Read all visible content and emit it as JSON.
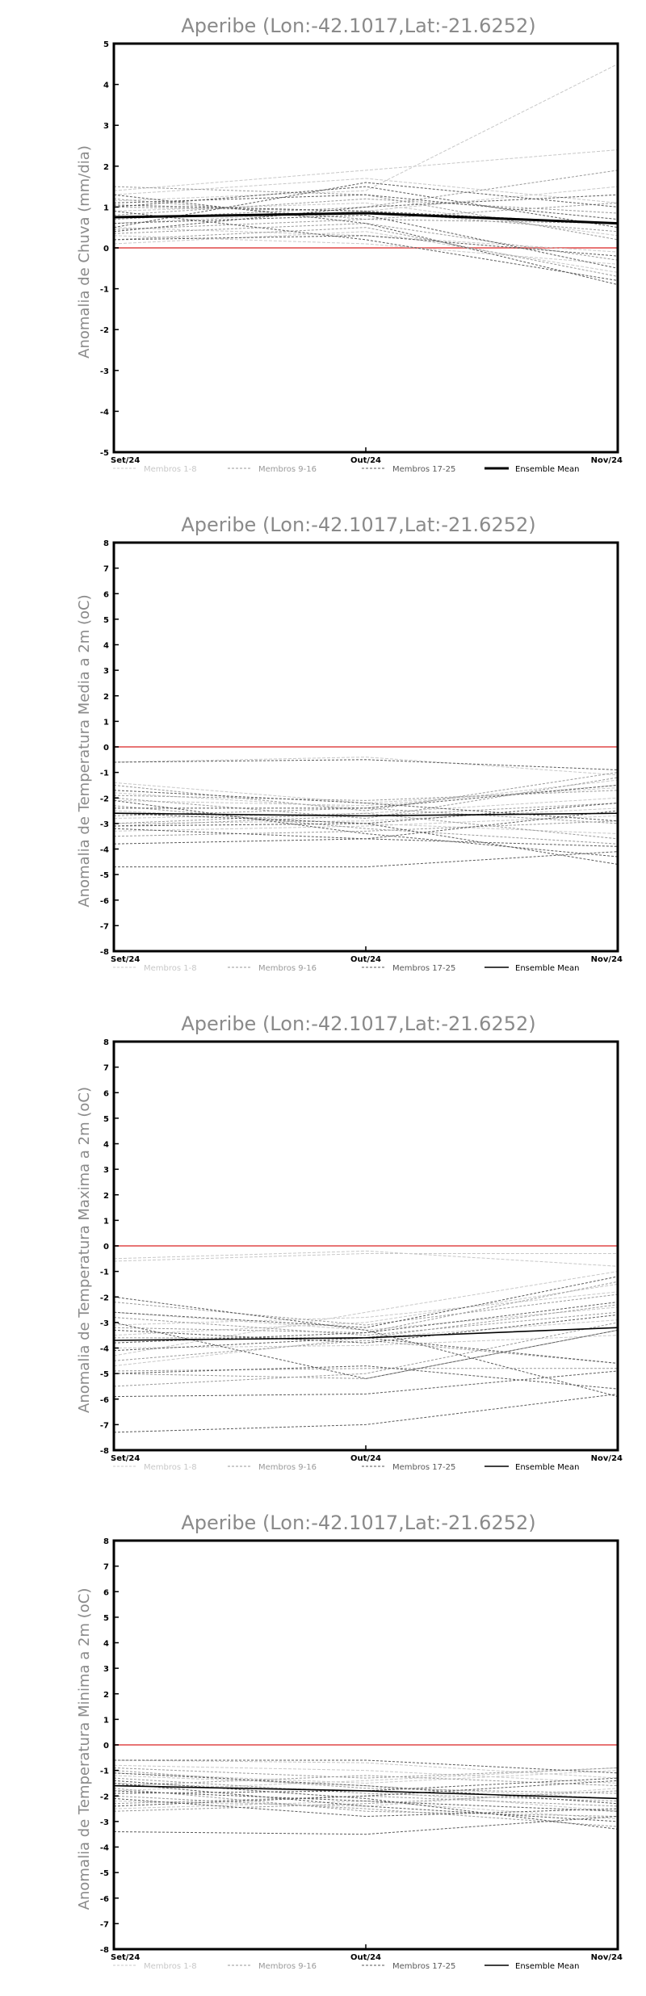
{
  "chart_data": [
    {
      "type": "line",
      "title": "Aperibe (Lon:-42.1017,Lat:-21.6252)",
      "ylabel": "Anomalia de Chuva (mm/dia)",
      "xlabel": "",
      "categories": [
        "Set/24",
        "Out/24",
        "Nov/24"
      ],
      "ylim": [
        -5,
        5
      ],
      "yticks": [
        -5,
        -4,
        -3,
        -2,
        -1,
        0,
        1,
        2,
        3,
        4,
        5
      ],
      "zero_line_color": "#e87575",
      "legend": [
        "Membros 1-8",
        "Membros 9-16",
        "Membros 17-25",
        "Ensemble Mean"
      ],
      "ensemble_mean_bold": true,
      "series": [
        {
          "name": "Membros 1-8",
          "values": [
            [
              1.15,
              1.4,
              4.5
            ],
            [
              0.6,
              0.9,
              1.5
            ],
            [
              0.3,
              0.1,
              -0.4
            ],
            [
              1.3,
              1.7,
              1.1
            ],
            [
              0.9,
              1.1,
              0.3
            ],
            [
              0.1,
              0.4,
              -0.6
            ],
            [
              1.4,
              1.9,
              2.4
            ],
            [
              0.5,
              0.3,
              -0.1
            ]
          ]
        },
        {
          "name": "Membros 9-16",
          "values": [
            [
              1.2,
              0.7,
              0.6
            ],
            [
              0.7,
              1.0,
              1.9
            ],
            [
              0.2,
              0.5,
              -0.7
            ],
            [
              1.0,
              0.9,
              0.4
            ],
            [
              0.45,
              0.7,
              1.1
            ],
            [
              1.5,
              1.3,
              0.2
            ],
            [
              0.35,
              0.6,
              -0.3
            ],
            [
              0.8,
              1.2,
              0.85
            ]
          ]
        },
        {
          "name": "Membros 17-25",
          "values": [
            [
              1.1,
              1.3,
              0.7
            ],
            [
              0.6,
              0.8,
              -0.5
            ],
            [
              1.3,
              0.6,
              -0.9
            ],
            [
              0.4,
              1.0,
              1.3
            ],
            [
              1.0,
              1.5,
              0.5
            ],
            [
              0.2,
              0.3,
              -0.2
            ],
            [
              1.05,
              0.9,
              0.6
            ],
            [
              0.5,
              1.6,
              1.0
            ],
            [
              0.9,
              0.2,
              -0.8
            ]
          ]
        },
        {
          "name": "Ensemble Mean",
          "values": [
            0.75,
            0.85,
            0.6
          ]
        }
      ]
    },
    {
      "type": "line",
      "title": "Aperibe (Lon:-42.1017,Lat:-21.6252)",
      "ylabel": "Anomalia de Temperatura Media a 2m (oC)",
      "xlabel": "",
      "categories": [
        "Set/24",
        "Out/24",
        "Nov/24"
      ],
      "ylim": [
        -8,
        8
      ],
      "yticks": [
        -8,
        -7,
        -6,
        -5,
        -4,
        -3,
        -2,
        -1,
        0,
        1,
        2,
        3,
        4,
        5,
        6,
        7,
        8
      ],
      "zero_line_color": "#e87575",
      "legend": [
        "Membros 1-8",
        "Membros 9-16",
        "Membros 17-25",
        "Ensemble Mean"
      ],
      "ensemble_mean_bold": false,
      "series": [
        {
          "name": "Membros 1-8",
          "values": [
            [
              -0.6,
              -0.4,
              -1.1
            ],
            [
              -2.1,
              -2.3,
              -1.5
            ],
            [
              -2.8,
              -2.6,
              -2.0
            ],
            [
              -1.4,
              -2.2,
              -1.6
            ],
            [
              -3.0,
              -2.9,
              -2.4
            ],
            [
              -2.5,
              -3.0,
              -3.4
            ],
            [
              -1.8,
              -2.4,
              -1.3
            ],
            [
              -3.3,
              -3.1,
              -2.7
            ]
          ]
        },
        {
          "name": "Membros 9-16",
          "values": [
            [
              -1.5,
              -2.5,
              -1.0
            ],
            [
              -2.3,
              -3.2,
              -3.8
            ],
            [
              -3.1,
              -2.7,
              -2.2
            ],
            [
              -2.7,
              -2.4,
              -3.0
            ],
            [
              -1.9,
              -2.1,
              -1.7
            ],
            [
              -3.5,
              -3.3,
              -2.9
            ],
            [
              -2.0,
              -2.8,
              -1.2
            ],
            [
              -3.0,
              -2.6,
              -3.6
            ]
          ]
        },
        {
          "name": "Membros 17-25",
          "values": [
            [
              -4.7,
              -4.7,
              -4.1
            ],
            [
              -2.1,
              -3.4,
              -4.3
            ],
            [
              -3.2,
              -3.6,
              -2.5
            ],
            [
              -2.4,
              -2.4,
              -1.5
            ],
            [
              -3.8,
              -3.6,
              -3.9
            ],
            [
              -0.6,
              -0.5,
              -0.9
            ],
            [
              -2.6,
              -3.0,
              -2.2
            ],
            [
              -1.7,
              -2.2,
              -2.9
            ],
            [
              -3.1,
              -3.0,
              -4.6
            ]
          ]
        },
        {
          "name": "Ensemble Mean",
          "values": [
            -2.6,
            -2.7,
            -2.6
          ]
        }
      ]
    },
    {
      "type": "line",
      "title": "Aperibe (Lon:-42.1017,Lat:-21.6252)",
      "ylabel": "Anomalia de Temperatura Maxima a 2m (oC)",
      "xlabel": "",
      "categories": [
        "Set/24",
        "Out/24",
        "Nov/24"
      ],
      "ylim": [
        -8,
        8
      ],
      "yticks": [
        -8,
        -7,
        -6,
        -5,
        -4,
        -3,
        -2,
        -1,
        0,
        1,
        2,
        3,
        4,
        5,
        6,
        7,
        8
      ],
      "zero_line_color": "#e87575",
      "legend": [
        "Membros 1-8",
        "Membros 9-16",
        "Membros 17-25",
        "Ensemble Mean"
      ],
      "ensemble_mean_bold": false,
      "series": [
        {
          "name": "Membros 1-8",
          "values": [
            [
              -0.6,
              -0.3,
              -0.3
            ],
            [
              -3.5,
              -3.0,
              -1.5
            ],
            [
              -4.3,
              -2.6,
              -1.0
            ],
            [
              -2.6,
              -3.3,
              -2.4
            ],
            [
              -4.7,
              -3.6,
              -2.9
            ],
            [
              -3.1,
              -2.8,
              -1.8
            ],
            [
              -0.5,
              -0.2,
              -0.8
            ],
            [
              -4.0,
              -3.9,
              -3.5
            ]
          ]
        },
        {
          "name": "Membros 9-16",
          "values": [
            [
              -3.2,
              -3.4,
              -1.4
            ],
            [
              -5.0,
              -5.2,
              -3.3
            ],
            [
              -2.8,
              -3.5,
              -2.6
            ],
            [
              -4.5,
              -3.7,
              -4.6
            ],
            [
              -3.6,
              -3.6,
              -2.3
            ],
            [
              -2.2,
              -3.1,
              -1.9
            ],
            [
              -5.5,
              -5.0,
              -3.0
            ],
            [
              -4.9,
              -4.8,
              -4.8
            ]
          ]
        },
        {
          "name": "Membros 17-25",
          "values": [
            [
              -7.3,
              -7.0,
              -5.8
            ],
            [
              -5.9,
              -5.8,
              -4.9
            ],
            [
              -2.0,
              -3.3,
              -5.9
            ],
            [
              -3.0,
              -5.2,
              -3.3
            ],
            [
              -4.1,
              -3.6,
              -4.6
            ],
            [
              -3.3,
              -3.8,
              -2.7
            ],
            [
              -2.6,
              -3.2,
              -1.2
            ],
            [
              -5.0,
              -4.7,
              -5.6
            ],
            [
              -3.8,
              -3.4,
              -2.2
            ]
          ]
        },
        {
          "name": "Ensemble Mean",
          "values": [
            -3.7,
            -3.6,
            -3.2
          ]
        }
      ]
    },
    {
      "type": "line",
      "title": "Aperibe (Lon:-42.1017,Lat:-21.6252)",
      "ylabel": "Anomalia de Temperatura Minima a 2m (oC)",
      "xlabel": "",
      "categories": [
        "Set/24",
        "Out/24",
        "Nov/24"
      ],
      "ylim": [
        -8,
        8
      ],
      "yticks": [
        -8,
        -7,
        -6,
        -5,
        -4,
        -3,
        -2,
        -1,
        0,
        1,
        2,
        3,
        4,
        5,
        6,
        7,
        8
      ],
      "zero_line_color": "#e87575",
      "legend": [
        "Membros 1-8",
        "Membros 9-16",
        "Membros 17-25",
        "Ensemble Mean"
      ],
      "ensemble_mean_bold": false,
      "series": [
        {
          "name": "Membros 1-8",
          "values": [
            [
              -0.6,
              -0.7,
              -1.3
            ],
            [
              -1.2,
              -1.6,
              -2.1
            ],
            [
              -1.8,
              -1.4,
              -0.9
            ],
            [
              -2.2,
              -2.4,
              -1.7
            ],
            [
              -1.5,
              -1.8,
              -2.6
            ],
            [
              -0.8,
              -1.0,
              -1.5
            ],
            [
              -2.5,
              -2.2,
              -2.9
            ],
            [
              -1.1,
              -1.5,
              -1.0
            ]
          ]
        },
        {
          "name": "Membros 9-16",
          "values": [
            [
              -1.3,
              -1.9,
              -2.2
            ],
            [
              -2.0,
              -2.5,
              -3.2
            ],
            [
              -1.6,
              -1.2,
              -1.6
            ],
            [
              -0.9,
              -1.3,
              -0.9
            ],
            [
              -2.3,
              -2.0,
              -2.4
            ],
            [
              -1.7,
              -2.6,
              -2.8
            ],
            [
              -1.0,
              -1.7,
              -1.9
            ],
            [
              -2.6,
              -2.3,
              -1.8
            ]
          ]
        },
        {
          "name": "Membros 17-25",
          "values": [
            [
              -3.4,
              -3.5,
              -2.8
            ],
            [
              -0.6,
              -0.6,
              -1.1
            ],
            [
              -1.4,
              -2.1,
              -3.3
            ],
            [
              -1.9,
              -1.8,
              -1.3
            ],
            [
              -2.1,
              -2.8,
              -2.5
            ],
            [
              -1.5,
              -2.4,
              -3.0
            ],
            [
              -2.4,
              -2.0,
              -1.4
            ],
            [
              -1.1,
              -1.6,
              -2.3
            ],
            [
              -1.8,
              -2.2,
              -2.6
            ]
          ]
        },
        {
          "name": "Ensemble Mean",
          "values": [
            -1.6,
            -1.8,
            -2.1
          ]
        }
      ]
    }
  ]
}
